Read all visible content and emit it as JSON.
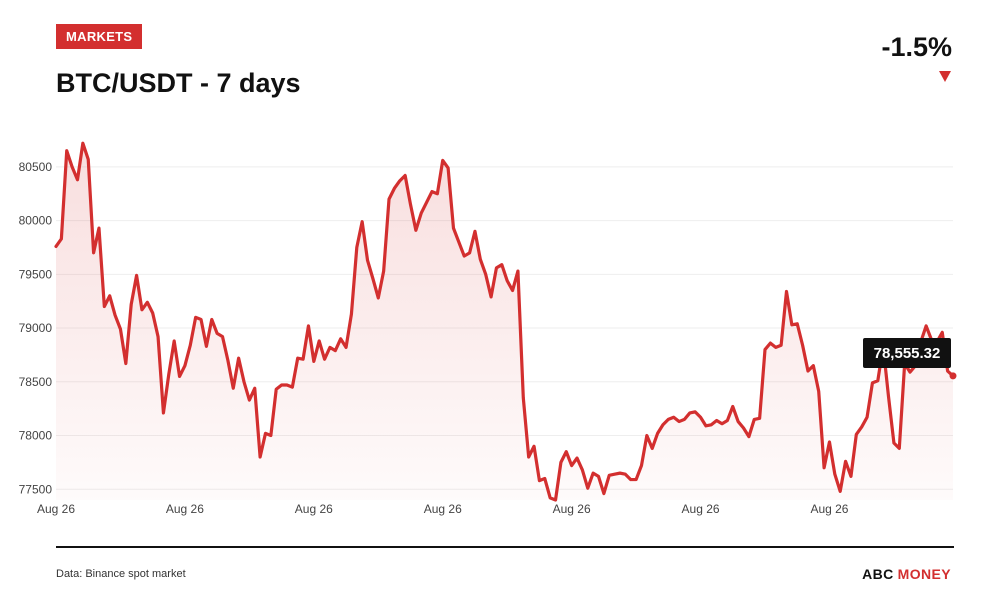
{
  "header": {
    "badge": "MARKETS",
    "title": "BTC/USDT - 7 days",
    "change": "-1.5%"
  },
  "footer": {
    "source": "Data: Binance spot market",
    "brand_part1": "ABC",
    "brand_part2": "MONEY"
  },
  "colors": {
    "accent": "#d32f2f",
    "grid": "#eeeeee"
  },
  "last_value_label": "78,555.32",
  "chart_data": {
    "type": "area",
    "title": "BTC/USDT - 7 days",
    "xlabel": "",
    "ylabel": "",
    "ylim": [
      77400,
      80750
    ],
    "xlim": [
      0,
      167
    ],
    "y_ticks": [
      77500,
      78000,
      78500,
      79000,
      79500,
      80000,
      80500
    ],
    "x_ticks": [
      {
        "x": 0,
        "label": "Aug 26"
      },
      {
        "x": 24,
        "label": "Aug 26"
      },
      {
        "x": 48,
        "label": "Aug 26"
      },
      {
        "x": 72,
        "label": "Aug 26"
      },
      {
        "x": 96,
        "label": "Aug 26"
      },
      {
        "x": 120,
        "label": "Aug 26"
      },
      {
        "x": 144,
        "label": "Aug 26"
      }
    ],
    "grid": true,
    "series": [
      {
        "values": [
          79760,
          79830,
          80650,
          80500,
          80380,
          80720,
          80570,
          79700,
          79930,
          79200,
          79300,
          79120,
          78990,
          78670,
          79220,
          79490,
          79170,
          79240,
          79140,
          78920,
          78210,
          78570,
          78880,
          78550,
          78650,
          78840,
          79100,
          79080,
          78830,
          79080,
          78950,
          78920,
          78700,
          78440,
          78720,
          78500,
          78330,
          78440,
          77800,
          78020,
          78000,
          78430,
          78470,
          78470,
          78450,
          78720,
          78710,
          79020,
          78690,
          78880,
          78710,
          78820,
          78790,
          78900,
          78820,
          79130,
          79750,
          79990,
          79630,
          79460,
          79280,
          79530,
          80200,
          80300,
          80370,
          80420,
          80150,
          79910,
          80070,
          80170,
          80270,
          80250,
          80560,
          80490,
          79930,
          79800,
          79670,
          79700,
          79900,
          79640,
          79500,
          79290,
          79560,
          79590,
          79440,
          79350,
          79530,
          78350,
          77800,
          77900,
          77580,
          77600,
          77420,
          77400,
          77750,
          77850,
          77720,
          77790,
          77680,
          77510,
          77650,
          77620,
          77460,
          77630,
          77640,
          77650,
          77640,
          77590,
          77590,
          77720,
          78000,
          77880,
          78020,
          78100,
          78150,
          78170,
          78130,
          78150,
          78210,
          78220,
          78170,
          78090,
          78100,
          78140,
          78110,
          78140,
          78270,
          78130,
          78070,
          77990,
          78150,
          78160,
          78800,
          78860,
          78820,
          78840,
          79340,
          79030,
          79040,
          78840,
          78600,
          78650,
          78410,
          77700,
          77940,
          77640,
          77480,
          77760,
          77620,
          78010,
          78080,
          78170,
          78490,
          78510,
          78830,
          78360,
          77930,
          77880,
          78670,
          78590,
          78650,
          78870,
          79020,
          78890,
          78870,
          78960,
          78600,
          78555
        ]
      }
    ]
  }
}
